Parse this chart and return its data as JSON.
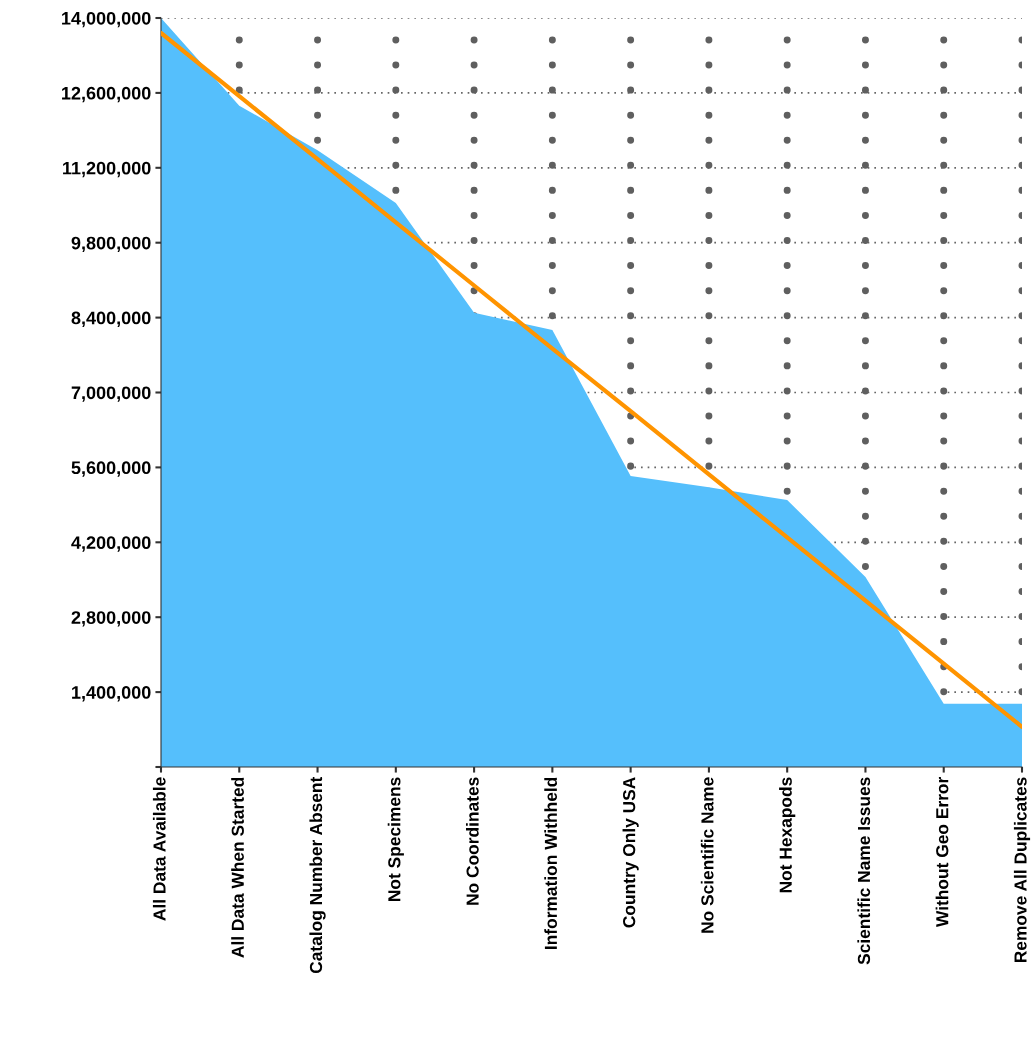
{
  "chart_data": {
    "type": "area",
    "categories": [
      "All Data Available",
      "All Data When Started",
      "Catalog Number Absent",
      "Not Specimens",
      "No Coordinates",
      "Information Withheld",
      "Country Only USA",
      "No Scientific Name",
      "Not Hexapods",
      "Scientific Name Issues",
      "Without Geo Error",
      "Remove All Duplicates"
    ],
    "series": [
      {
        "color": "#55bffc",
        "values": [
          14000000,
          12360000,
          11530000,
          10540000,
          8490000,
          8170000,
          5440000,
          5230000,
          4990000,
          3550000,
          1180000,
          1180000
        ]
      },
      {
        "type": "line",
        "color": "#ff9400",
        "values": [
          13720000,
          12540000,
          11360000,
          10180000,
          9000000,
          7820000,
          6650000,
          5470000,
          4290000,
          3110000,
          1930000,
          750000
        ]
      }
    ],
    "ylim": [
      0,
      14000000
    ],
    "yticks": [
      {
        "value": 0,
        "label": null
      },
      {
        "value": 1400000,
        "label": "1,400,000"
      },
      {
        "value": 2800000,
        "label": "2,800,000"
      },
      {
        "value": 4200000,
        "label": "4,200,000"
      },
      {
        "value": 5600000,
        "label": "5,600,000"
      },
      {
        "value": 7000000,
        "label": "7,000,000"
      },
      {
        "value": 8400000,
        "label": "8,400,000"
      },
      {
        "value": 9800000,
        "label": "9,800,000"
      },
      {
        "value": 11200000,
        "label": "11,200,000"
      },
      {
        "value": 12600000,
        "label": "12,600,000"
      },
      {
        "value": 14000000,
        "label": "14,000,000"
      }
    ],
    "grid": true,
    "line_style": "solid"
  }
}
